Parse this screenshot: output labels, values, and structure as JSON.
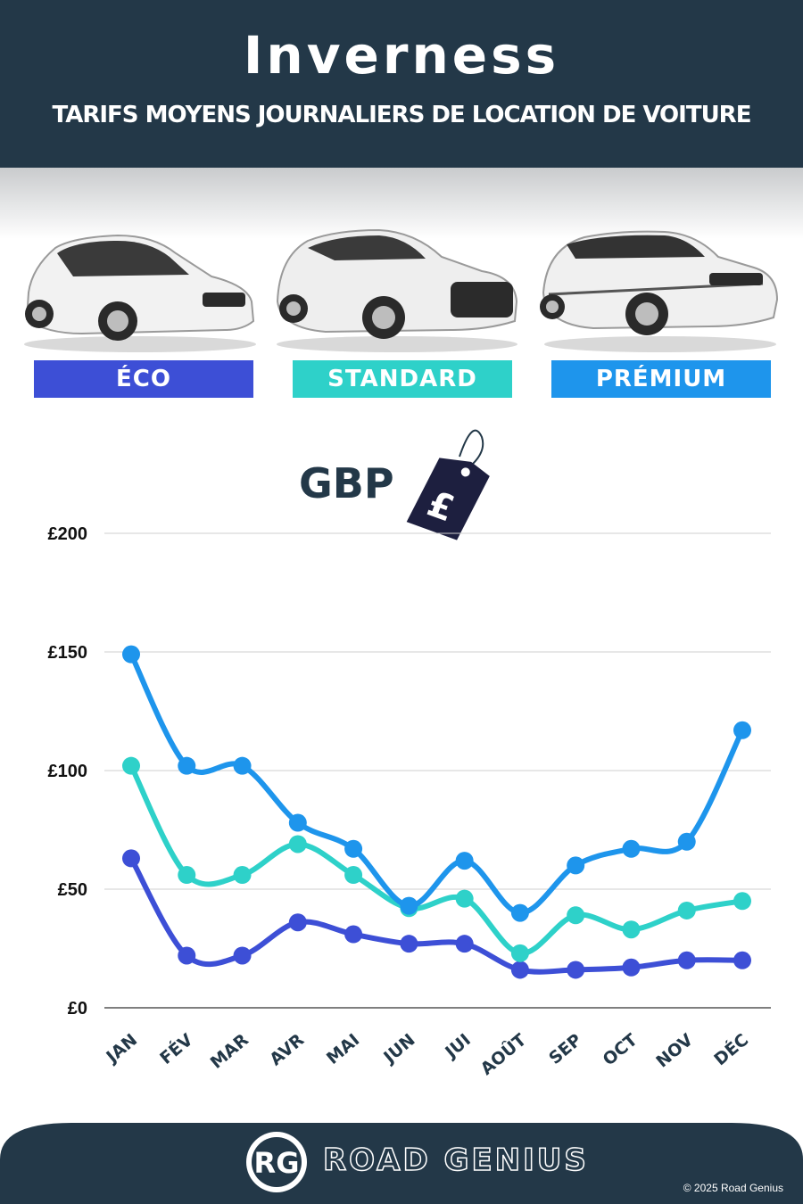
{
  "header": {
    "title": "Inverness",
    "subtitle": "TARIFS MOYENS JOURNALIERS DE LOCATION DE VOITURE"
  },
  "categories": [
    {
      "label": "ÉCO",
      "color": "#3d4fd6",
      "icon": "hatchback-car-icon"
    },
    {
      "label": "STANDARD",
      "color": "#2ed1c9",
      "icon": "suv-car-icon"
    },
    {
      "label": "PRÉMIUM",
      "color": "#1e95ec",
      "icon": "luxury-suv-car-icon"
    }
  ],
  "currency": {
    "label": "GBP",
    "symbol": "£",
    "icon": "price-tag-icon"
  },
  "chart_data": {
    "type": "line",
    "categories": [
      "JAN",
      "FÉV",
      "MAR",
      "AVR",
      "MAI",
      "JUN",
      "JUI",
      "AOÛT",
      "SEP",
      "OCT",
      "NOV",
      "DÉC"
    ],
    "series": [
      {
        "name": "ÉCO",
        "color": "#3d4fd6",
        "values": [
          63,
          22,
          22,
          36,
          31,
          27,
          27,
          16,
          16,
          17,
          20,
          20
        ]
      },
      {
        "name": "STANDARD",
        "color": "#2ed1c9",
        "values": [
          102,
          56,
          56,
          69,
          56,
          42,
          46,
          23,
          39,
          33,
          41,
          45
        ]
      },
      {
        "name": "PRÉMIUM",
        "color": "#1e95ec",
        "values": [
          149,
          102,
          102,
          78,
          67,
          43,
          62,
          40,
          60,
          67,
          70,
          117
        ]
      }
    ],
    "ylim": [
      0,
      200
    ],
    "yticks": [
      0,
      50,
      100,
      150,
      200
    ],
    "ytick_labels": [
      "£0",
      "£50",
      "£100",
      "£150",
      "£200"
    ],
    "grid": true,
    "xlabel": "",
    "ylabel": ""
  },
  "footer": {
    "logo_text": "RG",
    "brand": "ROAD GENIUS",
    "copyright": "© 2025 Road Genius"
  }
}
